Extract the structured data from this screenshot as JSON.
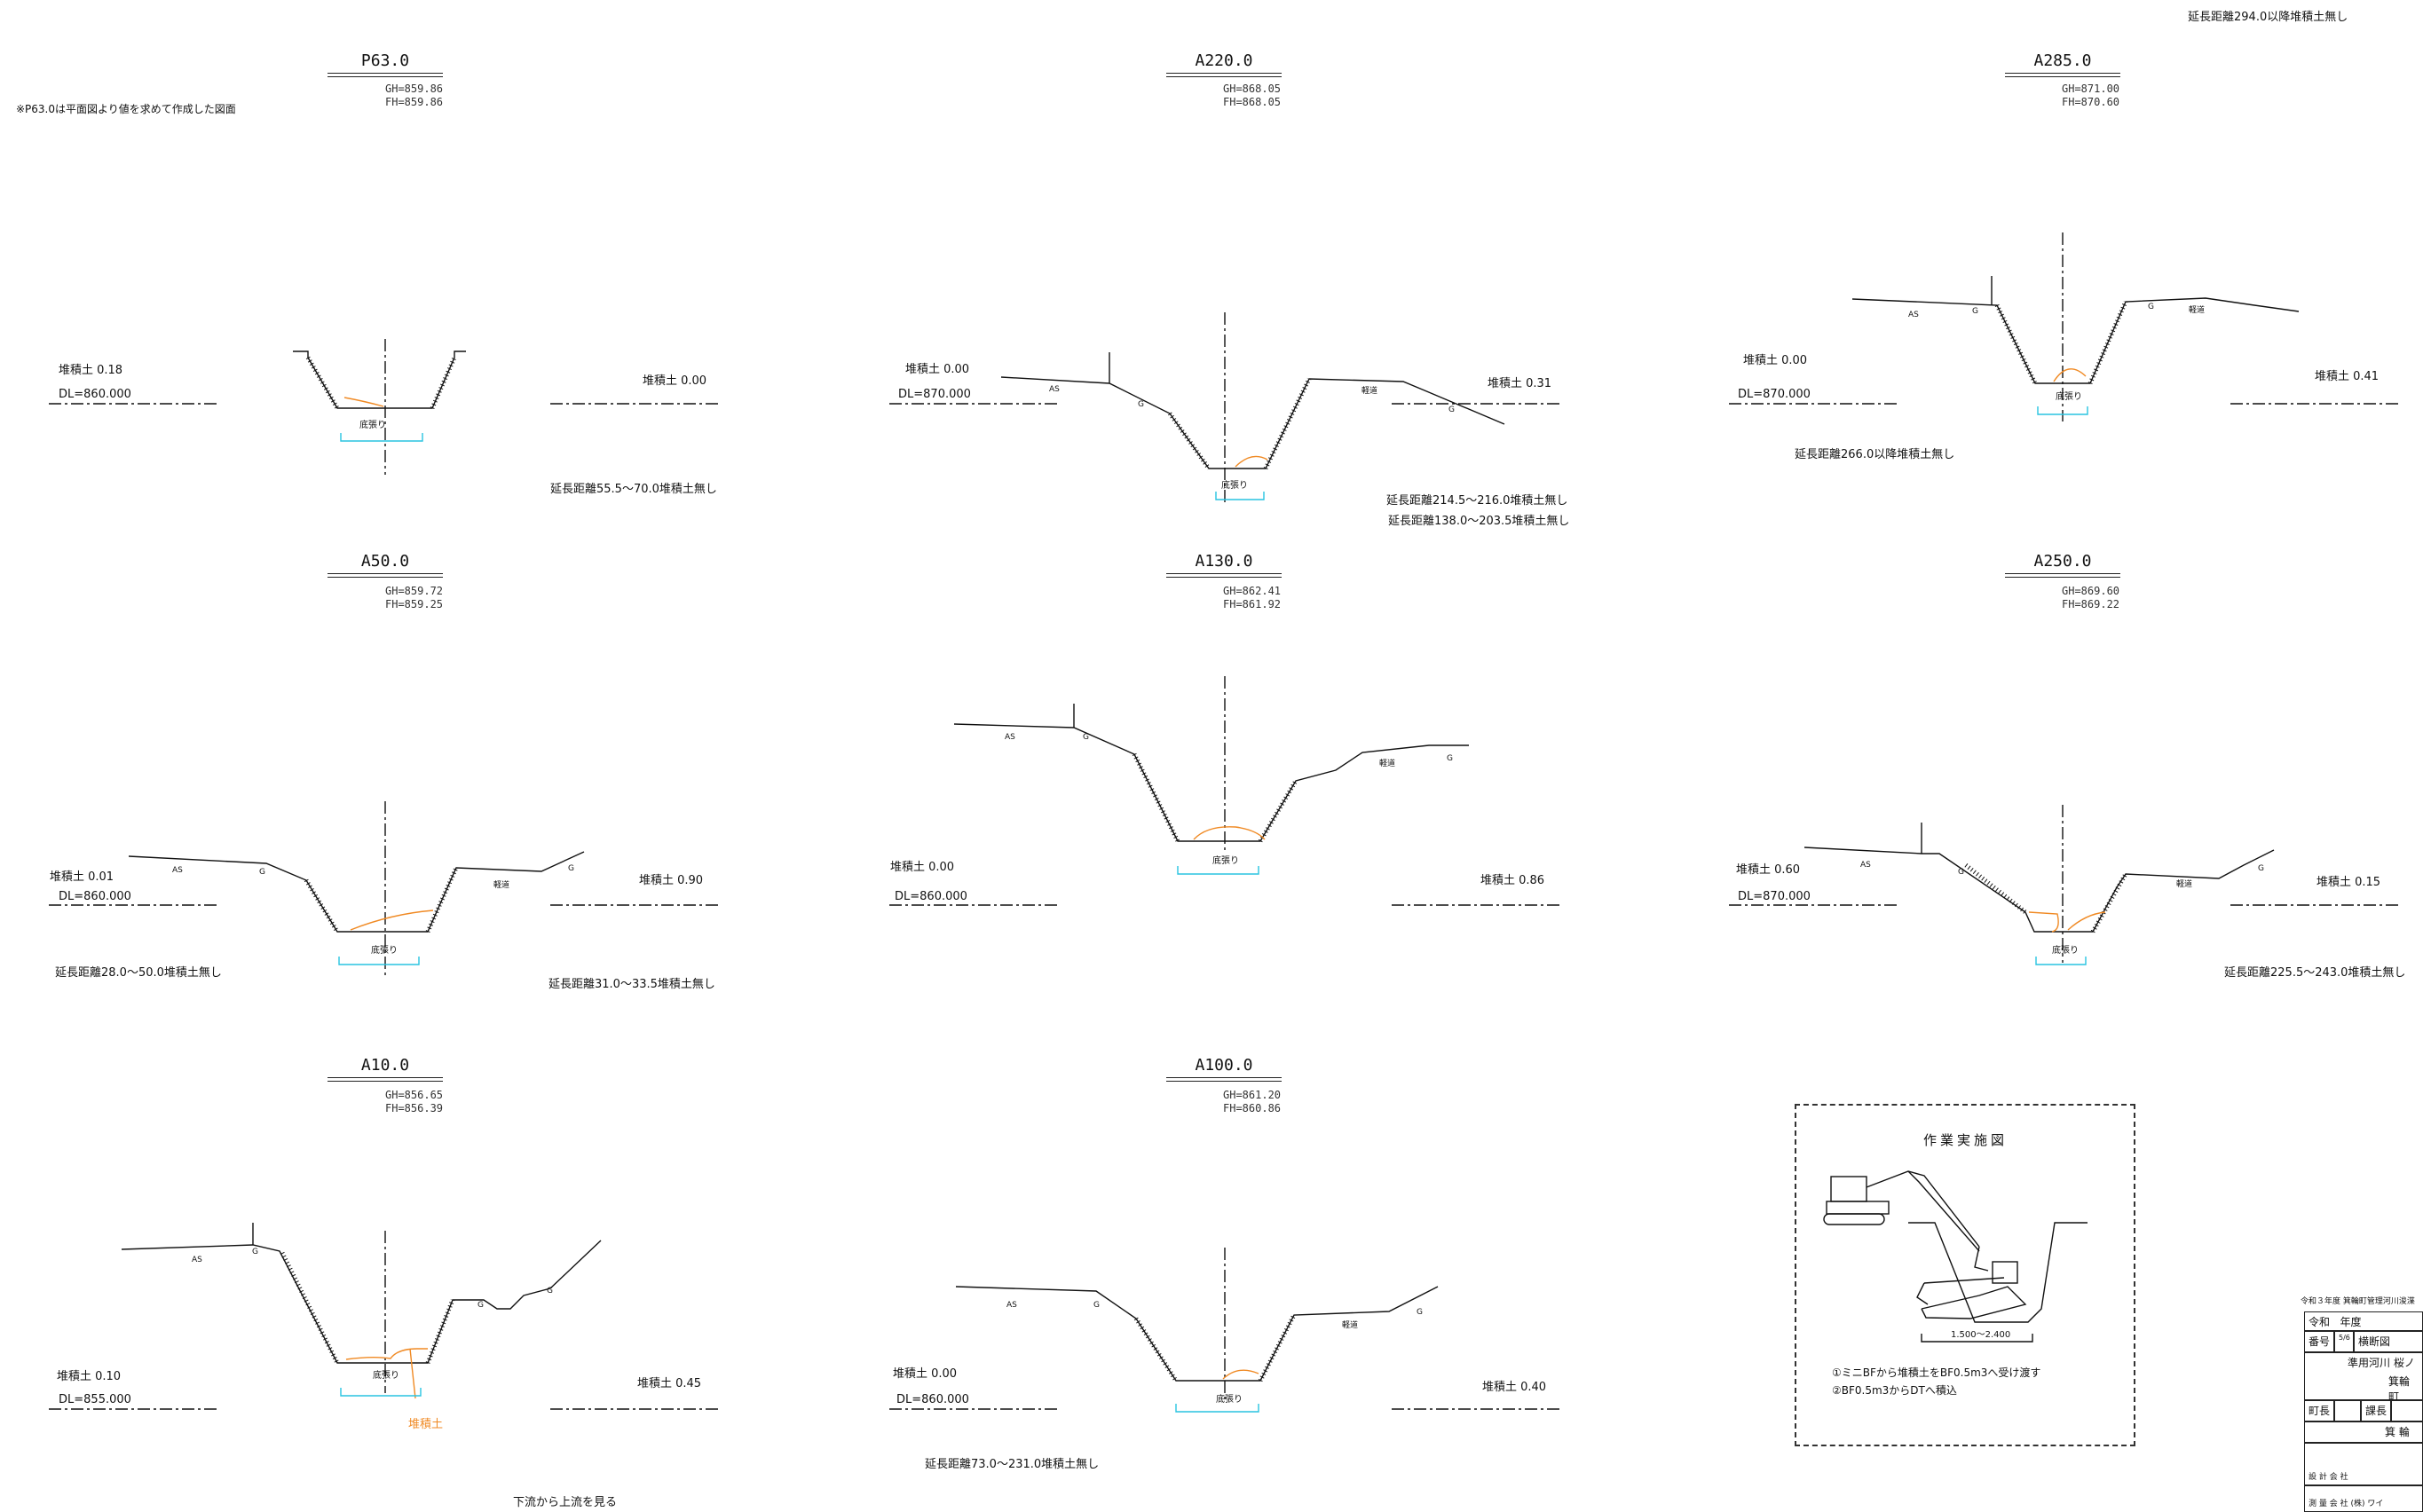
{
  "top_note": "延長距離294.0以降堆積土無し",
  "side_note": "※P63.0は平面図より値を求めて作成した図面",
  "view_direction": "下流から上流を見る",
  "colors": {
    "bed": "#f08a24",
    "dim": "#29c4e0",
    "line": "#111111"
  },
  "sections": [
    {
      "id": "P63",
      "title": "P63.0",
      "gh": "GH=859.86",
      "fh": "FH=859.86",
      "left": "堆積土  0.18",
      "right": "堆積土  0.00",
      "dl": "DL=860.000",
      "bottom": "底張り"
    },
    {
      "id": "A220",
      "title": "A220.0",
      "gh": "GH=868.05",
      "fh": "FH=868.05",
      "left": "堆積土  0.00",
      "right": "堆積土  0.31",
      "dl": "DL=870.000",
      "bottom": "底張り"
    },
    {
      "id": "A285",
      "title": "A285.0",
      "gh": "GH=871.00",
      "fh": "FH=870.60",
      "left": "堆積土  0.00",
      "right": "堆積土  0.41",
      "dl": "DL=870.000",
      "bottom": "底張り"
    },
    {
      "id": "A50",
      "title": "A50.0",
      "gh": "GH=859.72",
      "fh": "FH=859.25",
      "left": "堆積土  0.01",
      "right": "堆積土  0.90",
      "dl": "DL=860.000",
      "bottom": "底張り"
    },
    {
      "id": "A130",
      "title": "A130.0",
      "gh": "GH=862.41",
      "fh": "FH=861.92",
      "left": "堆積土  0.00",
      "right": "堆積土  0.86",
      "dl": "DL=860.000",
      "bottom": "底張り"
    },
    {
      "id": "A250",
      "title": "A250.0",
      "gh": "GH=869.60",
      "fh": "FH=869.22",
      "left": "堆積土  0.60",
      "right": "堆積土  0.15",
      "dl": "DL=870.000",
      "bottom": "底張り"
    },
    {
      "id": "A10",
      "title": "A10.0",
      "gh": "GH=856.65",
      "fh": "FH=856.39",
      "left": "堆積土  0.10",
      "right": "堆積土  0.45",
      "dl": "DL=855.000",
      "bottom": "底張り"
    },
    {
      "id": "A100",
      "title": "A100.0",
      "gh": "GH=861.20",
      "fh": "FH=860.86",
      "left": "堆積土  0.00",
      "right": "堆積土  0.40",
      "dl": "DL=860.000",
      "bottom": "底張り"
    }
  ],
  "range_notes": {
    "p63": "延長距離55.5〜70.0堆積土無し",
    "a220_1": "延長距離214.5〜216.0堆積土無し",
    "a220_2": "延長距離138.0〜203.5堆積土無し",
    "a285": "延長距離266.0以降堆積土無し",
    "a50_1": "延長距離28.0〜50.0堆積土無し",
    "a50_2": "延長距離31.0〜33.5堆積土無し",
    "a250": "延長距離225.5〜243.0堆積土無し",
    "a100": "延長距離73.0〜231.0堆積土無し"
  },
  "bed_label": "堆積土",
  "terrain": {
    "as": "AS",
    "g": "G",
    "road": "軽道"
  },
  "work_panel": {
    "title": "作業実施図",
    "dim": "1.500〜2.400",
    "step1": "①ミニBFから堆積土をBF0.5m3へ受け渡す",
    "step2": "②BF0.5m3からDTへ積込"
  },
  "title_block": {
    "header": "令和３年度 箕輪町管理河川浚渫",
    "reiwa": "令和",
    "year": "年度",
    "num": "番号",
    "drawing": "横断図",
    "river": "準用河川 桜ノ",
    "town": "箕輪町",
    "mayor": "町長",
    "chief": "課長",
    "mino": "箕 輪",
    "design": "設 計 会 社",
    "survey": "測 量 会 社",
    "company": "(株) ワイ"
  }
}
